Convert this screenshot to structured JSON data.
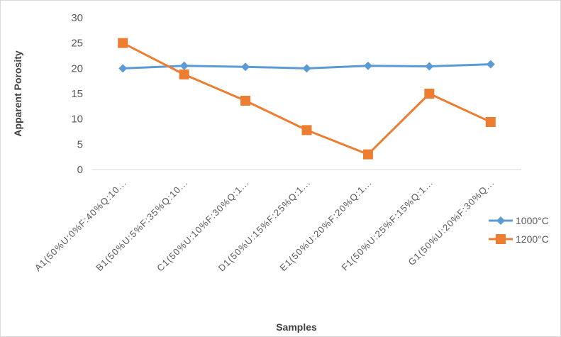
{
  "chart_data": {
    "type": "line",
    "title": "",
    "xlabel": "Samples",
    "ylabel": "Apparent Porosity",
    "ylim": [
      0,
      30
    ],
    "yticks": [
      0,
      5,
      10,
      15,
      20,
      25,
      30
    ],
    "grid": false,
    "legend": "right",
    "categories": [
      "A1(50%U:0%F:40%Q:10...",
      "B1(50%U:5%F:35%Q:10...",
      "C1(50%U:10%F:30%Q:1...",
      "D1(50%U:15%F:25%Q:1...",
      "E1(50%U:20%F:20%Q:1...",
      "F1(50%U:25%F:15%Q:1...",
      "G1(50%U:20%F:30%Q..."
    ],
    "series": [
      {
        "name": "1000°C",
        "color": "#5B9BD5",
        "marker": "diamond",
        "values": [
          20.0,
          20.5,
          20.3,
          20.0,
          20.5,
          20.4,
          20.8
        ]
      },
      {
        "name": "1200°C",
        "color": "#ED7D31",
        "marker": "square",
        "values": [
          25.0,
          18.8,
          13.6,
          7.8,
          3.0,
          15.0,
          9.4
        ]
      }
    ]
  }
}
